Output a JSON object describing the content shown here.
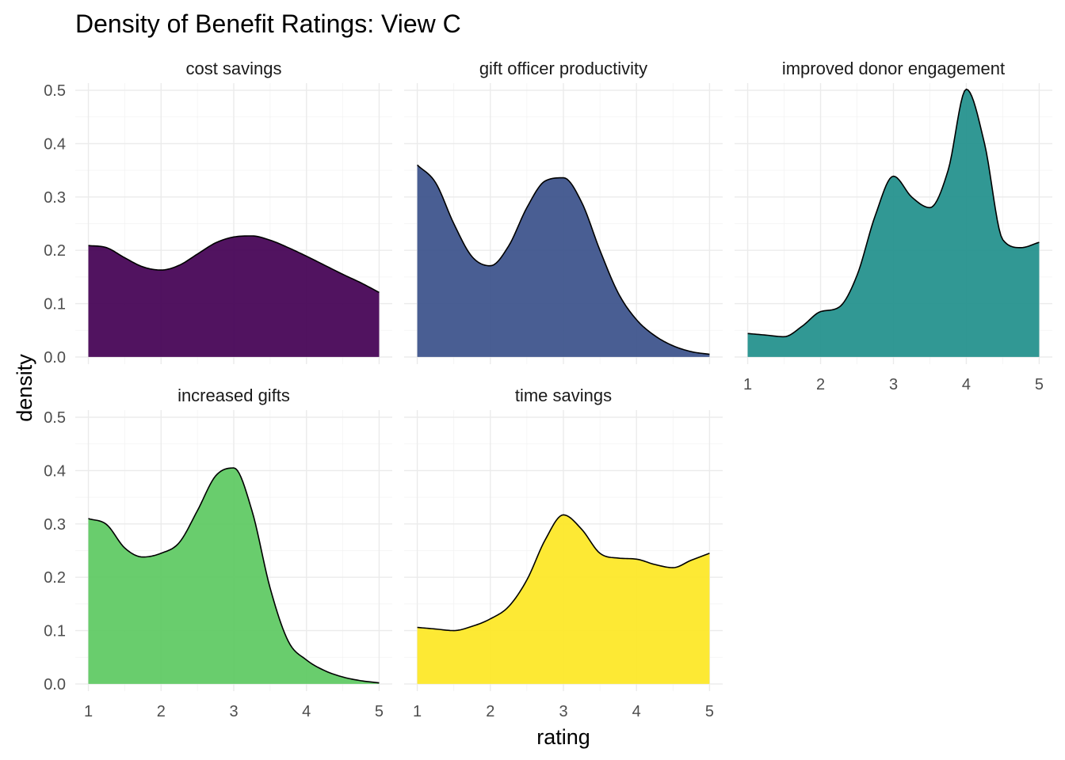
{
  "chart_data": {
    "type": "area",
    "title": "Density of Benefit Ratings: View C",
    "xlabel": "rating",
    "ylabel": "density",
    "xlim": [
      1,
      5
    ],
    "ylim": [
      0,
      0.5
    ],
    "x_ticks": [
      1,
      2,
      3,
      4,
      5
    ],
    "y_ticks": [
      0.0,
      0.1,
      0.2,
      0.3,
      0.4,
      0.5
    ],
    "y_tick_labels": [
      "0.0",
      "0.1",
      "0.2",
      "0.3",
      "0.4",
      "0.5"
    ],
    "grid": true,
    "x": [
      1.0,
      1.25,
      1.5,
      1.75,
      2.0,
      2.25,
      2.5,
      2.75,
      3.0,
      3.25,
      3.5,
      3.75,
      4.0,
      4.25,
      4.5,
      4.75,
      5.0
    ],
    "series": [
      {
        "name": "cost savings",
        "color": "#440154",
        "values": [
          0.209,
          0.205,
          0.186,
          0.169,
          0.163,
          0.172,
          0.193,
          0.214,
          0.225,
          0.227,
          0.219,
          0.205,
          0.189,
          0.172,
          0.155,
          0.139,
          0.121
        ]
      },
      {
        "name": "gift officer productivity",
        "color": "#3b528b",
        "values": [
          0.36,
          0.327,
          0.25,
          0.188,
          0.171,
          0.208,
          0.28,
          0.33,
          0.336,
          0.29,
          0.2,
          0.12,
          0.07,
          0.04,
          0.021,
          0.01,
          0.005
        ]
      },
      {
        "name": "improved donor engagement",
        "color": "#21908c",
        "values": [
          0.044,
          0.041,
          0.038,
          0.058,
          0.085,
          0.093,
          0.153,
          0.265,
          0.339,
          0.3,
          0.28,
          0.35,
          0.502,
          0.4,
          0.22,
          0.205,
          0.215
        ]
      },
      {
        "name": "increased gifts",
        "color": "#5ec962",
        "values": [
          0.31,
          0.299,
          0.255,
          0.238,
          0.245,
          0.265,
          0.325,
          0.39,
          0.405,
          0.325,
          0.18,
          0.08,
          0.045,
          0.025,
          0.013,
          0.006,
          0.002
        ]
      },
      {
        "name": "time savings",
        "color": "#fde725",
        "values": [
          0.106,
          0.103,
          0.1,
          0.108,
          0.122,
          0.145,
          0.195,
          0.27,
          0.317,
          0.29,
          0.245,
          0.236,
          0.234,
          0.224,
          0.218,
          0.232,
          0.245
        ]
      }
    ]
  }
}
